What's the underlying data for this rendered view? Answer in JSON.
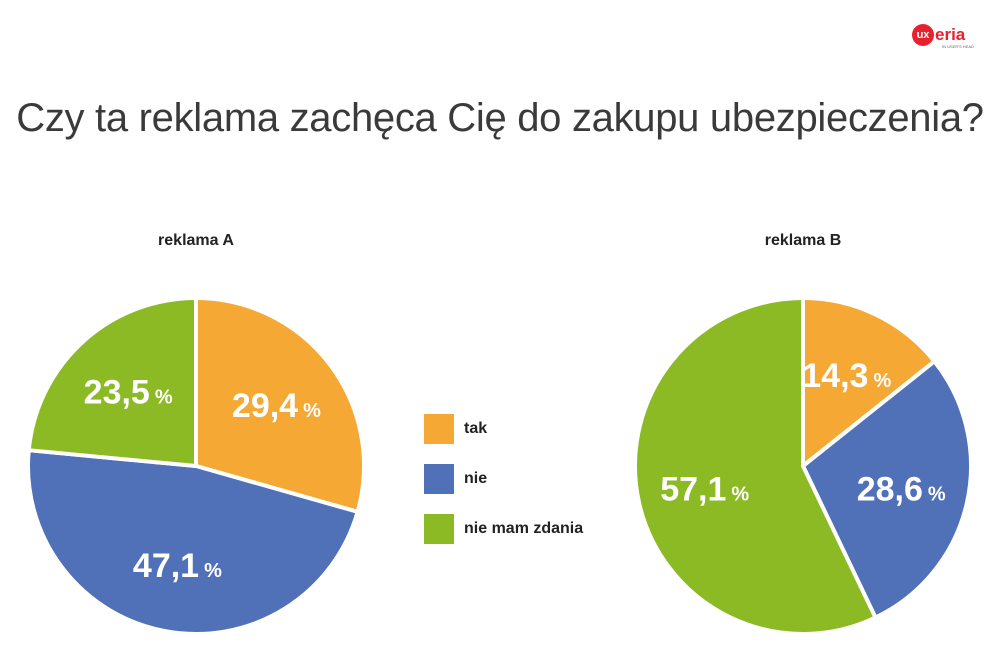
{
  "logo": {
    "mark": "ux",
    "word": "eria",
    "tagline": "IN USER'S HEAD"
  },
  "title": "Czy ta reklama zachęca Cię do zakupu ubezpieczenia?",
  "colors": {
    "tak": "#f5a833",
    "nie": "#5070b8",
    "nie_mam_zdania": "#8cba25",
    "title": "#3a3a3a",
    "logo": "#e8212e"
  },
  "legend": [
    {
      "label": "tak",
      "color": "#f5a833"
    },
    {
      "label": "nie",
      "color": "#5070b8"
    },
    {
      "label": "nie mam zdania",
      "color": "#8cba25"
    }
  ],
  "chart_data": [
    {
      "type": "pie",
      "title": "reklama A",
      "categories": [
        "tak",
        "nie",
        "nie mam zdania"
      ],
      "values": [
        29.4,
        47.1,
        23.5
      ],
      "labels": [
        "29,4",
        "47,1",
        "23,5"
      ],
      "unit": "%",
      "colors": [
        "#f5a833",
        "#5070b8",
        "#8cba25"
      ]
    },
    {
      "type": "pie",
      "title": "reklama B",
      "categories": [
        "tak",
        "nie",
        "nie mam zdania"
      ],
      "values": [
        14.3,
        28.6,
        57.1
      ],
      "labels": [
        "14,3",
        "28,6",
        "57,1"
      ],
      "unit": "%",
      "colors": [
        "#f5a833",
        "#5070b8",
        "#8cba25"
      ]
    }
  ]
}
